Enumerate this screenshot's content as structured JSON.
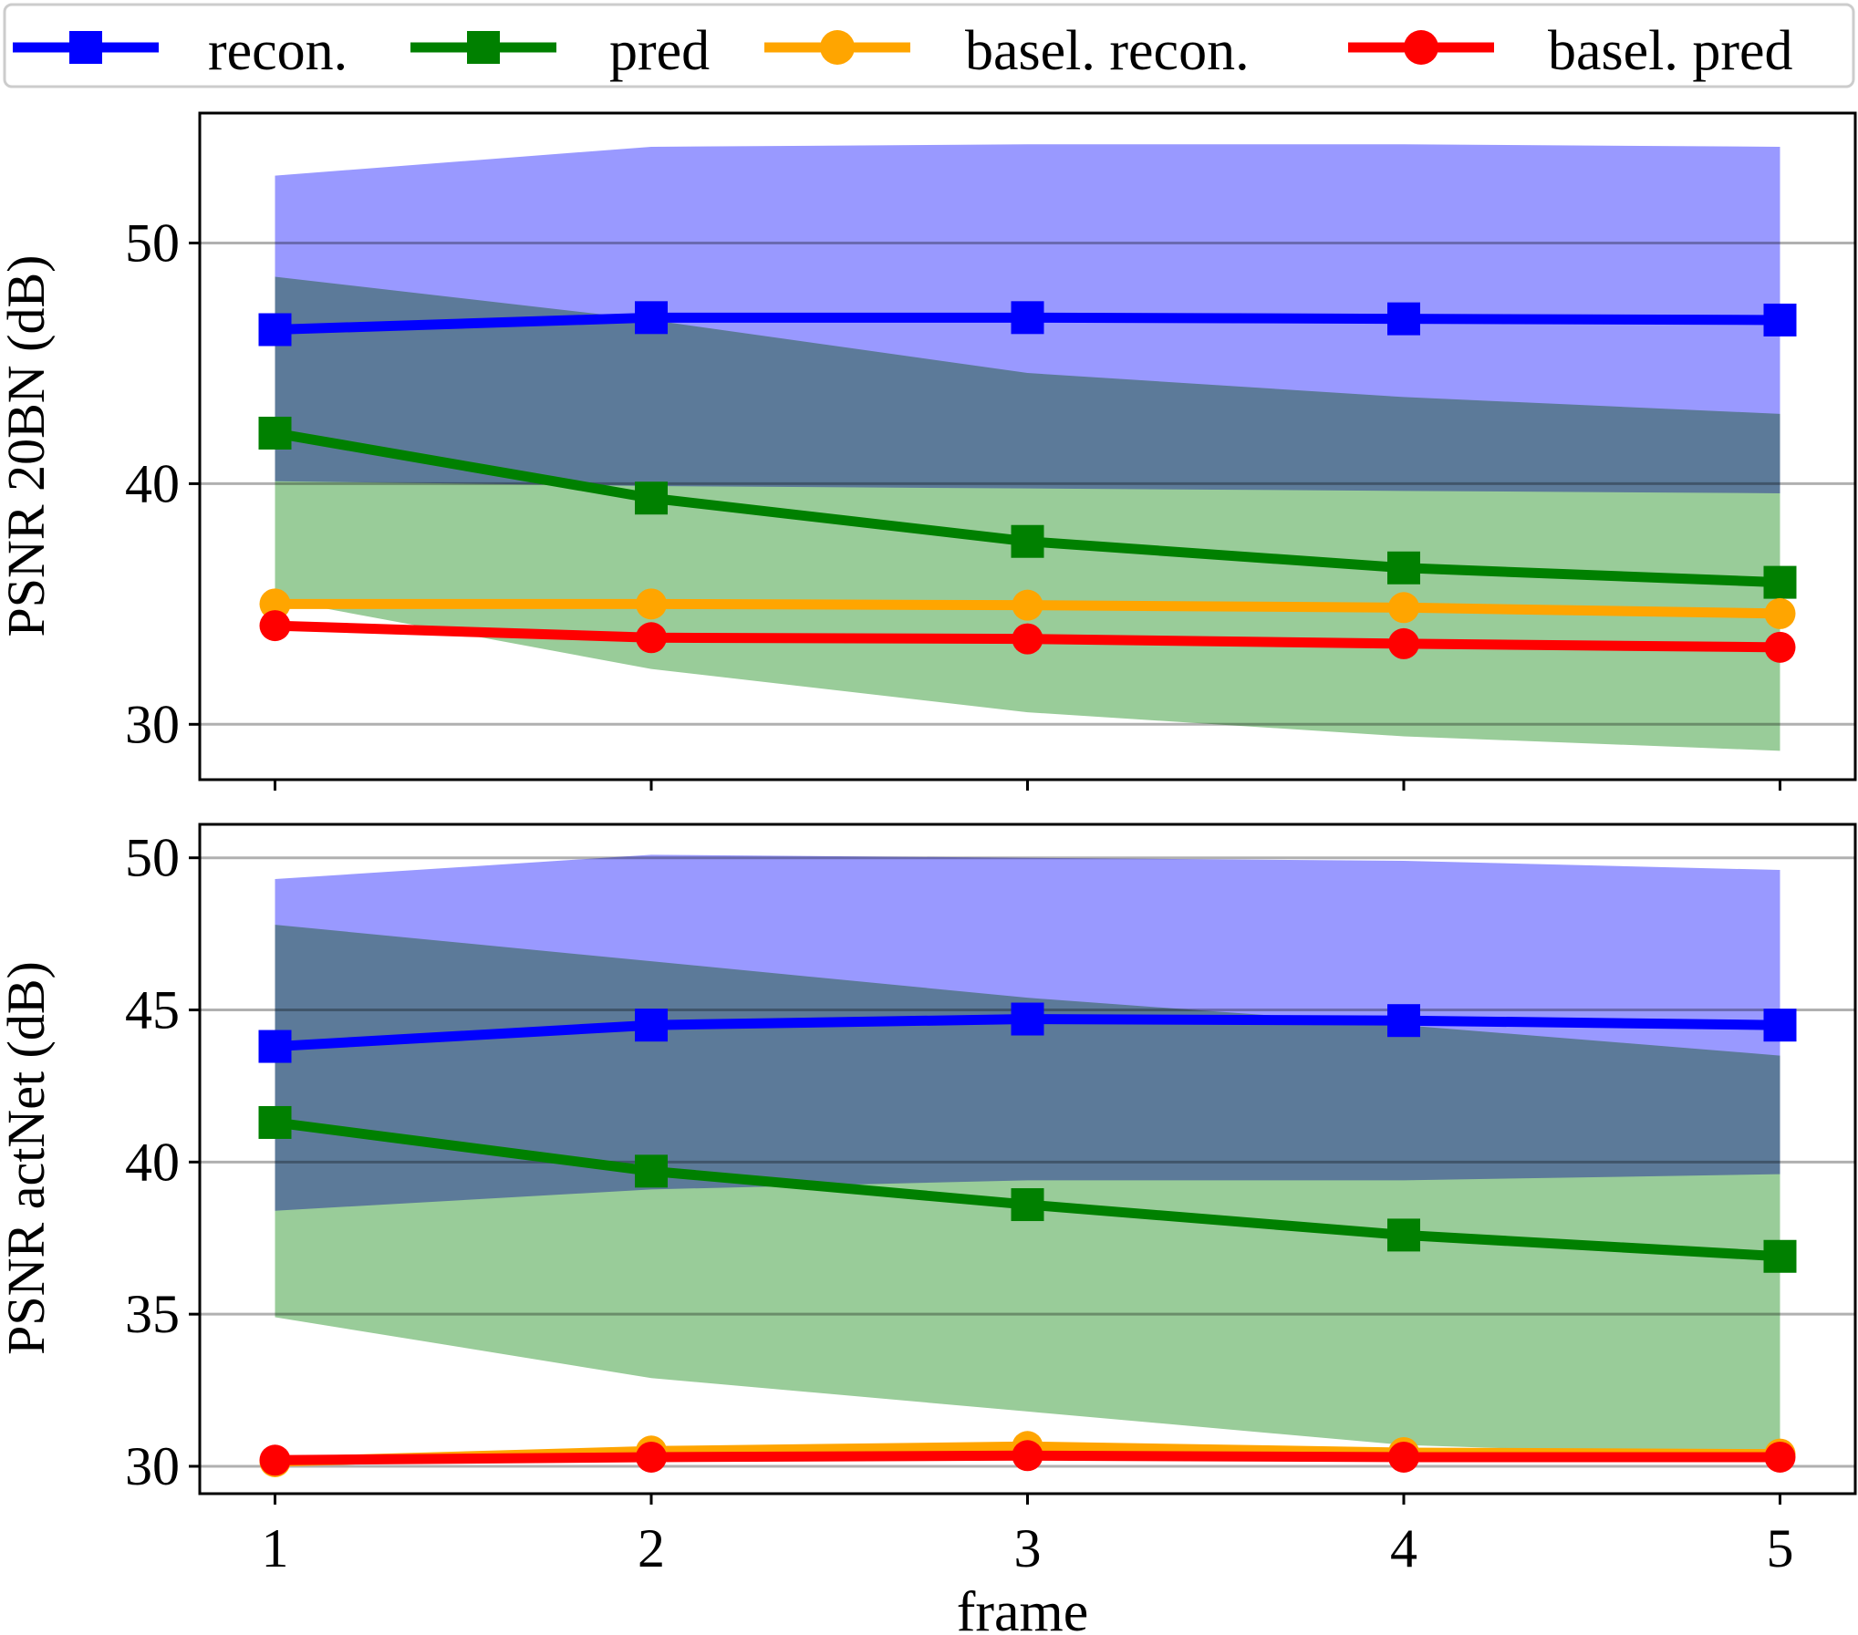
{
  "legend": {
    "placement": "top",
    "entries": [
      {
        "label": "recon.",
        "color": "#0000ff",
        "marker": "square"
      },
      {
        "label": "pred",
        "color": "#008000",
        "marker": "square"
      },
      {
        "label": "basel. recon.",
        "color": "#ffa500",
        "marker": "circle"
      },
      {
        "label": "basel. pred",
        "color": "#ff0000",
        "marker": "circle"
      }
    ]
  },
  "chart_data": [
    {
      "type": "line",
      "title": "",
      "xlabel": "",
      "ylabel": "PSNR 20BN (dB)",
      "x": [
        1,
        2,
        3,
        4,
        5
      ],
      "xlim": [
        0.8,
        5.2
      ],
      "ylim": [
        27.7,
        55.4
      ],
      "yticks": [
        30,
        40,
        50
      ],
      "grid": "horizontal",
      "series": [
        {
          "name": "recon.",
          "color": "#0000ff",
          "marker": "square",
          "values": [
            46.4,
            46.9,
            46.9,
            46.85,
            46.8
          ],
          "band": {
            "color": "#9999ff",
            "lower": [
              40.1,
              39.9,
              39.8,
              39.7,
              39.6
            ],
            "upper": [
              52.8,
              54.0,
              54.1,
              54.1,
              54.0
            ]
          }
        },
        {
          "name": "pred",
          "color": "#008000",
          "marker": "square",
          "values": [
            42.1,
            39.4,
            37.6,
            36.5,
            35.9
          ],
          "band": {
            "color": "#99cc99",
            "lower": [
              35.2,
              32.3,
              30.5,
              29.5,
              28.9
            ],
            "upper": [
              48.6,
              46.8,
              44.6,
              43.6,
              42.9
            ]
          }
        },
        {
          "name": "basel. recon.",
          "color": "#ffa500",
          "marker": "circle",
          "values": [
            35.0,
            35.0,
            34.95,
            34.85,
            34.6
          ]
        },
        {
          "name": "basel. pred",
          "color": "#ff0000",
          "marker": "circle",
          "values": [
            34.1,
            33.6,
            33.55,
            33.35,
            33.2
          ]
        }
      ]
    },
    {
      "type": "line",
      "title": "",
      "xlabel": "frame",
      "ylabel": "PSNR actNet (dB)",
      "x": [
        1,
        2,
        3,
        4,
        5
      ],
      "xticks": [
        "1",
        "2",
        "3",
        "4",
        "5"
      ],
      "xlim": [
        0.8,
        5.2
      ],
      "ylim": [
        29.1,
        51.1
      ],
      "yticks": [
        30,
        35,
        40,
        45,
        50
      ],
      "grid": "horizontal",
      "series": [
        {
          "name": "recon.",
          "color": "#0000ff",
          "marker": "square",
          "values": [
            43.8,
            44.5,
            44.7,
            44.65,
            44.5
          ],
          "band": {
            "color": "#9999ff",
            "lower": [
              38.4,
              39.1,
              39.4,
              39.4,
              39.6
            ],
            "upper": [
              49.3,
              50.1,
              50.0,
              49.9,
              49.6
            ]
          }
        },
        {
          "name": "pred",
          "color": "#008000",
          "marker": "square",
          "values": [
            41.3,
            39.7,
            38.6,
            37.6,
            36.9
          ],
          "band": {
            "color": "#99cc99",
            "lower": [
              34.9,
              32.9,
              31.8,
              30.7,
              30.3
            ],
            "upper": [
              47.8,
              46.6,
              45.4,
              44.5,
              43.5
            ]
          }
        },
        {
          "name": "basel. recon.",
          "color": "#ffa500",
          "marker": "circle",
          "values": [
            30.15,
            30.5,
            30.65,
            30.45,
            30.4
          ]
        },
        {
          "name": "basel. pred",
          "color": "#ff0000",
          "marker": "circle",
          "values": [
            30.2,
            30.3,
            30.35,
            30.3,
            30.3
          ]
        }
      ]
    }
  ]
}
